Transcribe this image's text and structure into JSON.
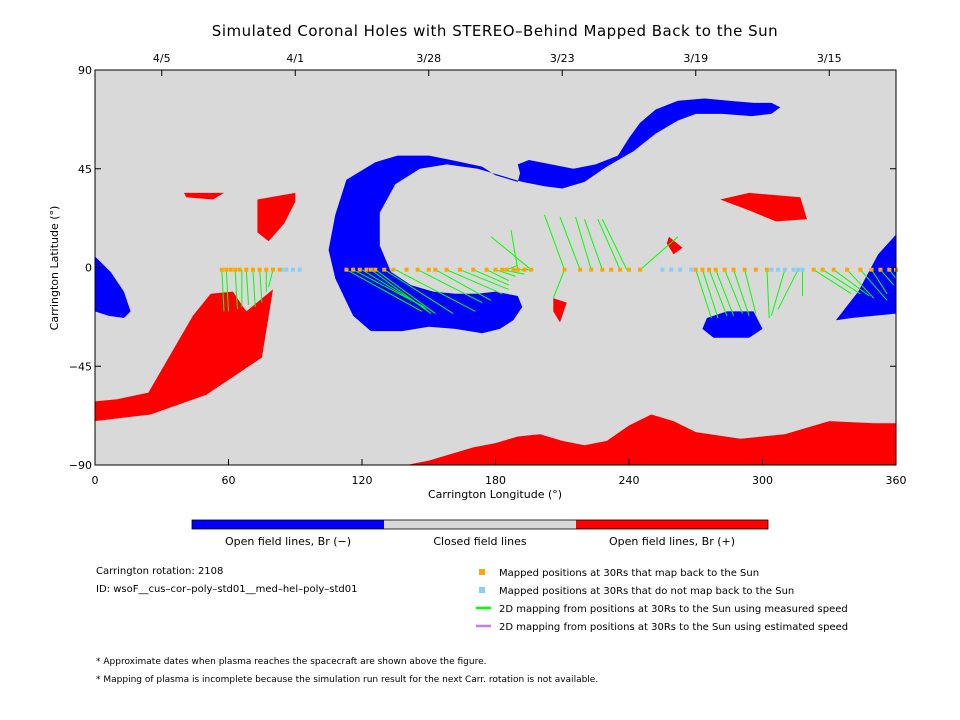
{
  "chart_data": {
    "type": "scatter",
    "title": "Simulated Coronal Holes with STEREO–Behind Mapped Back to the Sun",
    "xlabel": "Carrington Longitude (°)",
    "ylabel": "Carrington Latitude (°)",
    "xlim": [
      0,
      360
    ],
    "ylim": [
      -90,
      90
    ],
    "x_ticks": [
      "0",
      "60",
      "120",
      "180",
      "240",
      "300",
      "360"
    ],
    "y_ticks": [
      "90",
      "45",
      "0",
      "−45",
      "−90"
    ],
    "top_date_ticks": [
      {
        "label": "4/5",
        "lon": 30
      },
      {
        "label": "4/1",
        "lon": 90
      },
      {
        "label": "3/28",
        "lon": 150
      },
      {
        "label": "3/23",
        "lon": 210
      },
      {
        "label": "3/19",
        "lon": 270
      },
      {
        "label": "3/15",
        "lon": 330
      }
    ],
    "colors": {
      "closed": "#d9d9d9",
      "open_neg": "#0000ff",
      "open_pos": "#ff0000",
      "mapped": "#ffa500",
      "unmapped": "#87cefa",
      "measured_line": "#00ff00",
      "estimated_line": "#b97ff5"
    },
    "colorbar": {
      "labels": [
        "Open field lines, Br (−)",
        "Closed field lines",
        "Open field lines, Br (+)"
      ]
    },
    "mapped_points_lon": [
      57,
      59,
      61,
      63,
      65,
      68,
      71,
      74,
      77,
      80,
      83,
      113,
      116,
      119,
      122,
      124,
      126,
      130,
      134,
      140,
      145,
      150,
      153,
      158,
      164,
      170,
      176,
      180,
      183,
      185,
      188,
      190,
      193,
      196,
      211,
      218,
      223,
      228,
      232,
      236,
      240,
      245,
      270,
      273,
      276,
      279,
      283,
      287,
      292,
      297,
      302,
      323,
      327,
      332,
      338,
      344,
      349,
      353,
      357,
      360
    ],
    "unmapped_points_lon": [
      84,
      86,
      89,
      92,
      255,
      259,
      263,
      268,
      304,
      307,
      310,
      314,
      316,
      318
    ],
    "open_regions_neg": [
      {
        "lon": [
          108,
          105,
          108,
          113,
          126,
          136,
          150,
          160,
          174,
          180,
          190,
          191,
          190,
          195,
          205,
          215,
          225,
          235,
          240,
          245,
          252,
          262,
          274,
          285,
          296,
          304,
          308,
          304,
          295,
          282,
          270,
          262,
          252,
          242,
          230,
          220,
          210,
          202,
          192,
          182,
          172,
          158,
          146,
          135,
          128,
          128,
          133,
          142,
          152,
          162,
          172,
          180,
          190,
          192,
          188,
          182,
          174,
          162,
          150,
          138,
          124,
          116,
          108
        ],
        "lat": [
          -5,
          8,
          24,
          40,
          48,
          51,
          51,
          49,
          46,
          42,
          39,
          43,
          47,
          49,
          47,
          45,
          47,
          51,
          59,
          66,
          72,
          76,
          77,
          76,
          75,
          75,
          73,
          70,
          69,
          70,
          70,
          67,
          61,
          53,
          46,
          39,
          36,
          37,
          39,
          42,
          45,
          47,
          45,
          38,
          25,
          10,
          -2,
          -8,
          -11,
          -12,
          -12,
          -11,
          -13,
          -18,
          -24,
          -28,
          -30,
          -28,
          -27,
          -29,
          -29,
          -22,
          -5
        ]
      },
      {
        "lon": [
          0,
          7,
          13,
          16,
          13,
          6,
          0
        ],
        "lat": [
          5,
          -2,
          -11,
          -20,
          -23,
          -22,
          -20
        ]
      },
      {
        "lon": [
          275,
          284,
          296,
          300,
          294,
          278,
          273
        ],
        "lat": [
          -23,
          -20,
          -20,
          -28,
          -32,
          -32,
          -28
        ]
      },
      {
        "lon": [
          333,
          343,
          352,
          360,
          360,
          350,
          340
        ],
        "lat": [
          -24,
          -11,
          6,
          15,
          -21,
          -22,
          -23
        ]
      }
    ],
    "open_regions_pos": [
      {
        "lon": [
          0,
          25,
          50,
          75,
          80,
          68,
          62,
          52,
          44,
          36,
          24,
          10,
          0
        ],
        "lat": [
          -70,
          -67,
          -58,
          -41,
          -10,
          -20,
          -11,
          -12,
          -22,
          -36,
          -57,
          -60,
          -61
        ]
      },
      {
        "lon": [
          50,
          80,
          110,
          140,
          150,
          160,
          170,
          180,
          190,
          200,
          210,
          220,
          230,
          240,
          250,
          260,
          270,
          290,
          310,
          330,
          350,
          360,
          360,
          0,
          0
        ],
        "lat": [
          -90,
          -90,
          -90,
          -90,
          -88,
          -85,
          -82,
          -80,
          -77,
          -76,
          -79,
          -81,
          -79,
          -72,
          -67,
          -70,
          -75,
          -78,
          -76,
          -70,
          -71,
          -71,
          -90,
          -90,
          -90
        ]
      },
      {
        "lon": [
          40,
          58,
          53,
          41
        ],
        "lat": [
          34,
          34,
          31,
          32
        ]
      },
      {
        "lon": [
          73,
          90,
          90,
          85,
          78,
          73
        ],
        "lat": [
          31,
          34,
          30,
          20,
          12,
          16
        ]
      },
      {
        "lon": [
          281,
          294,
          317,
          320,
          306,
          294,
          281
        ],
        "lat": [
          31,
          34,
          32,
          22,
          21,
          26,
          31
        ]
      },
      {
        "lon": [
          258,
          264,
          260,
          257
        ],
        "lat": [
          14,
          9,
          6,
          11
        ]
      },
      {
        "lon": [
          206,
          212,
          209,
          206
        ],
        "lat": [
          -14,
          -16,
          -25,
          -20
        ]
      }
    ],
    "mapping_lines_measured": [
      [
        57,
        -1,
        58,
        -20
      ],
      [
        59,
        -1,
        60,
        -20
      ],
      [
        63,
        -1,
        64,
        -19
      ],
      [
        66,
        -1,
        66,
        -18
      ],
      [
        68,
        -1,
        69,
        -17
      ],
      [
        71,
        -1,
        72,
        -18
      ],
      [
        74,
        -1,
        75,
        -16
      ],
      [
        77,
        -1,
        77,
        -11
      ],
      [
        80,
        -1,
        78,
        -9
      ],
      [
        113,
        -1,
        147,
        -20
      ],
      [
        116,
        -1,
        148,
        -18
      ],
      [
        120,
        -1,
        149,
        -19
      ],
      [
        124,
        -1,
        151,
        -21
      ],
      [
        126,
        -1,
        153,
        -21
      ],
      [
        130,
        -1,
        161,
        -21
      ],
      [
        135,
        -1,
        171,
        -20
      ],
      [
        145,
        -1,
        174,
        -16
      ],
      [
        153,
        -1,
        178,
        -15
      ],
      [
        158,
        -1,
        183,
        -12
      ],
      [
        164,
        -1,
        186,
        -10
      ],
      [
        170,
        -1,
        186,
        -8
      ],
      [
        176,
        -1,
        186,
        -6
      ],
      [
        180,
        -1,
        189,
        -4
      ],
      [
        183,
        -1,
        193,
        -3
      ],
      [
        185,
        -1,
        190,
        1
      ],
      [
        188,
        -1,
        197,
        -1
      ],
      [
        196,
        -1,
        178,
        14
      ],
      [
        190,
        -1,
        187,
        17
      ],
      [
        211,
        -1,
        202,
        24
      ],
      [
        218,
        -1,
        209,
        23
      ],
      [
        223,
        -1,
        216,
        23
      ],
      [
        228,
        -1,
        220,
        22
      ],
      [
        236,
        -1,
        226,
        22
      ],
      [
        239,
        -1,
        228,
        22
      ],
      [
        245,
        -1,
        262,
        14
      ],
      [
        211,
        -1,
        206,
        -14
      ],
      [
        270,
        -1,
        277,
        -23
      ],
      [
        273,
        -1,
        280,
        -23
      ],
      [
        276,
        -1,
        284,
        -22
      ],
      [
        279,
        -1,
        287,
        -22
      ],
      [
        283,
        -1,
        291,
        -21
      ],
      [
        287,
        -1,
        294,
        -22
      ],
      [
        292,
        -1,
        297,
        -21
      ],
      [
        302,
        -1,
        303,
        -23
      ],
      [
        310,
        -1,
        304,
        -22
      ],
      [
        316,
        -1,
        307,
        -19
      ],
      [
        318,
        -1,
        318,
        -13
      ],
      [
        323,
        -1,
        340,
        -12
      ],
      [
        327,
        -1,
        344,
        -12
      ],
      [
        332,
        -1,
        348,
        -13
      ],
      [
        338,
        -1,
        350,
        -14
      ],
      [
        344,
        -1,
        356,
        -15
      ],
      [
        349,
        -1,
        356,
        -12
      ],
      [
        353,
        -1,
        359,
        -8
      ],
      [
        357,
        -1,
        360,
        -5
      ]
    ],
    "mapping_lines_estimated": []
  },
  "legend": {
    "mapped": "Mapped positions at 30Rs that map back to the Sun",
    "unmapped": "Mapped positions at 30Rs that do not map back to the Sun",
    "measured": "2D mapping from positions at 30Rs to the Sun using measured speed",
    "estimated": "2D mapping from positions at 30Rs to the Sun using estimated speed"
  },
  "info": {
    "rotation": "Carrington rotation: 2108",
    "run_id": "ID: wsoF__cus–cor–poly–std01__med–hel–poly–std01"
  },
  "notes": {
    "note1": "* Approximate dates when plasma reaches the spacecraft are shown above the figure.",
    "note2": "* Mapping of plasma is incomplete because the simulation run result for the next Carr. rotation is not available."
  }
}
